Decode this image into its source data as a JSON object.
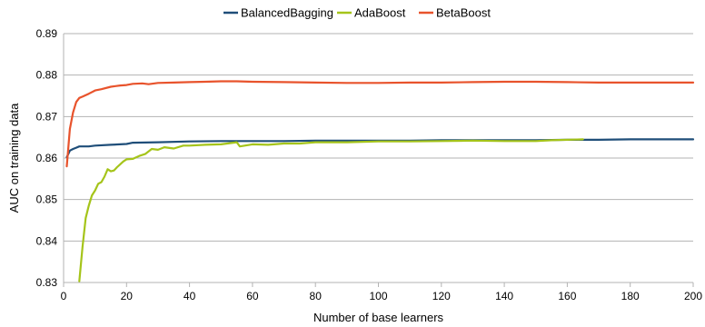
{
  "chart_data": {
    "type": "line",
    "title": "",
    "xlabel": "Number of base learners",
    "ylabel": "AUC on training data",
    "xlim": [
      0,
      200
    ],
    "ylim": [
      0.83,
      0.89
    ],
    "xticks": [
      0,
      20,
      40,
      60,
      80,
      100,
      120,
      140,
      160,
      180,
      200
    ],
    "yticks": [
      0.83,
      0.84,
      0.85,
      0.86,
      0.87,
      0.88,
      0.89
    ],
    "xtick_labels": [
      "0",
      "20",
      "40",
      "60",
      "80",
      "100",
      "120",
      "140",
      "160",
      "180",
      "200"
    ],
    "ytick_labels": [
      "0.83",
      "0.84",
      "0.85",
      "0.86",
      "0.87",
      "0.88",
      "0.89"
    ],
    "grid": "horizontal",
    "legend_position": "top",
    "series": [
      {
        "name": "BalancedBagging",
        "color": "#1f4e79",
        "points": [
          [
            1,
            0.8602
          ],
          [
            2,
            0.8618
          ],
          [
            3,
            0.8622
          ],
          [
            4,
            0.8625
          ],
          [
            5,
            0.8628
          ],
          [
            8,
            0.8628
          ],
          [
            10,
            0.863
          ],
          [
            15,
            0.8632
          ],
          [
            20,
            0.8634
          ],
          [
            22,
            0.8637
          ],
          [
            30,
            0.8638
          ],
          [
            40,
            0.864
          ],
          [
            50,
            0.8641
          ],
          [
            60,
            0.8641
          ],
          [
            70,
            0.8641
          ],
          [
            80,
            0.8642
          ],
          [
            90,
            0.8642
          ],
          [
            100,
            0.8642
          ],
          [
            110,
            0.8642
          ],
          [
            120,
            0.8643
          ],
          [
            130,
            0.8643
          ],
          [
            140,
            0.8643
          ],
          [
            150,
            0.8643
          ],
          [
            160,
            0.8644
          ],
          [
            170,
            0.8644
          ],
          [
            180,
            0.8645
          ],
          [
            190,
            0.8645
          ],
          [
            200,
            0.8645
          ]
        ]
      },
      {
        "name": "AdaBoost",
        "color": "#a5c41a",
        "points": [
          [
            5,
            0.8303
          ],
          [
            6,
            0.8385
          ],
          [
            7,
            0.8455
          ],
          [
            8,
            0.8485
          ],
          [
            9,
            0.851
          ],
          [
            10,
            0.8522
          ],
          [
            11,
            0.8538
          ],
          [
            12,
            0.8542
          ],
          [
            13,
            0.8555
          ],
          [
            14,
            0.8573
          ],
          [
            15,
            0.8568
          ],
          [
            16,
            0.857
          ],
          [
            17,
            0.8578
          ],
          [
            18,
            0.8585
          ],
          [
            19,
            0.8592
          ],
          [
            20,
            0.8597
          ],
          [
            22,
            0.8598
          ],
          [
            24,
            0.8605
          ],
          [
            26,
            0.861
          ],
          [
            28,
            0.8622
          ],
          [
            30,
            0.862
          ],
          [
            32,
            0.8626
          ],
          [
            35,
            0.8623
          ],
          [
            38,
            0.863
          ],
          [
            40,
            0.863
          ],
          [
            45,
            0.8632
          ],
          [
            50,
            0.8633
          ],
          [
            55,
            0.8638
          ],
          [
            56,
            0.8628
          ],
          [
            60,
            0.8633
          ],
          [
            65,
            0.8632
          ],
          [
            70,
            0.8635
          ],
          [
            75,
            0.8635
          ],
          [
            80,
            0.8638
          ],
          [
            85,
            0.8638
          ],
          [
            90,
            0.8638
          ],
          [
            100,
            0.864
          ],
          [
            110,
            0.864
          ],
          [
            120,
            0.8641
          ],
          [
            130,
            0.8642
          ],
          [
            140,
            0.8641
          ],
          [
            150,
            0.8641
          ],
          [
            155,
            0.8643
          ],
          [
            160,
            0.8644
          ],
          [
            165,
            0.8645
          ]
        ]
      },
      {
        "name": "BetaBoost",
        "color": "#e8532c",
        "points": [
          [
            1,
            0.858
          ],
          [
            2,
            0.867
          ],
          [
            3,
            0.871
          ],
          [
            4,
            0.8735
          ],
          [
            5,
            0.8745
          ],
          [
            6,
            0.8748
          ],
          [
            8,
            0.8755
          ],
          [
            10,
            0.8763
          ],
          [
            12,
            0.8766
          ],
          [
            15,
            0.8772
          ],
          [
            18,
            0.8775
          ],
          [
            20,
            0.8776
          ],
          [
            22,
            0.8779
          ],
          [
            25,
            0.878
          ],
          [
            27,
            0.8778
          ],
          [
            30,
            0.8781
          ],
          [
            35,
            0.8782
          ],
          [
            40,
            0.8783
          ],
          [
            45,
            0.8784
          ],
          [
            50,
            0.8785
          ],
          [
            55,
            0.8785
          ],
          [
            60,
            0.8784
          ],
          [
            70,
            0.8783
          ],
          [
            80,
            0.8782
          ],
          [
            90,
            0.8781
          ],
          [
            100,
            0.8781
          ],
          [
            110,
            0.8782
          ],
          [
            120,
            0.8782
          ],
          [
            130,
            0.8783
          ],
          [
            140,
            0.8784
          ],
          [
            150,
            0.8784
          ],
          [
            160,
            0.8783
          ],
          [
            170,
            0.8782
          ],
          [
            180,
            0.8782
          ],
          [
            190,
            0.8782
          ],
          [
            200,
            0.8782
          ]
        ]
      }
    ]
  }
}
